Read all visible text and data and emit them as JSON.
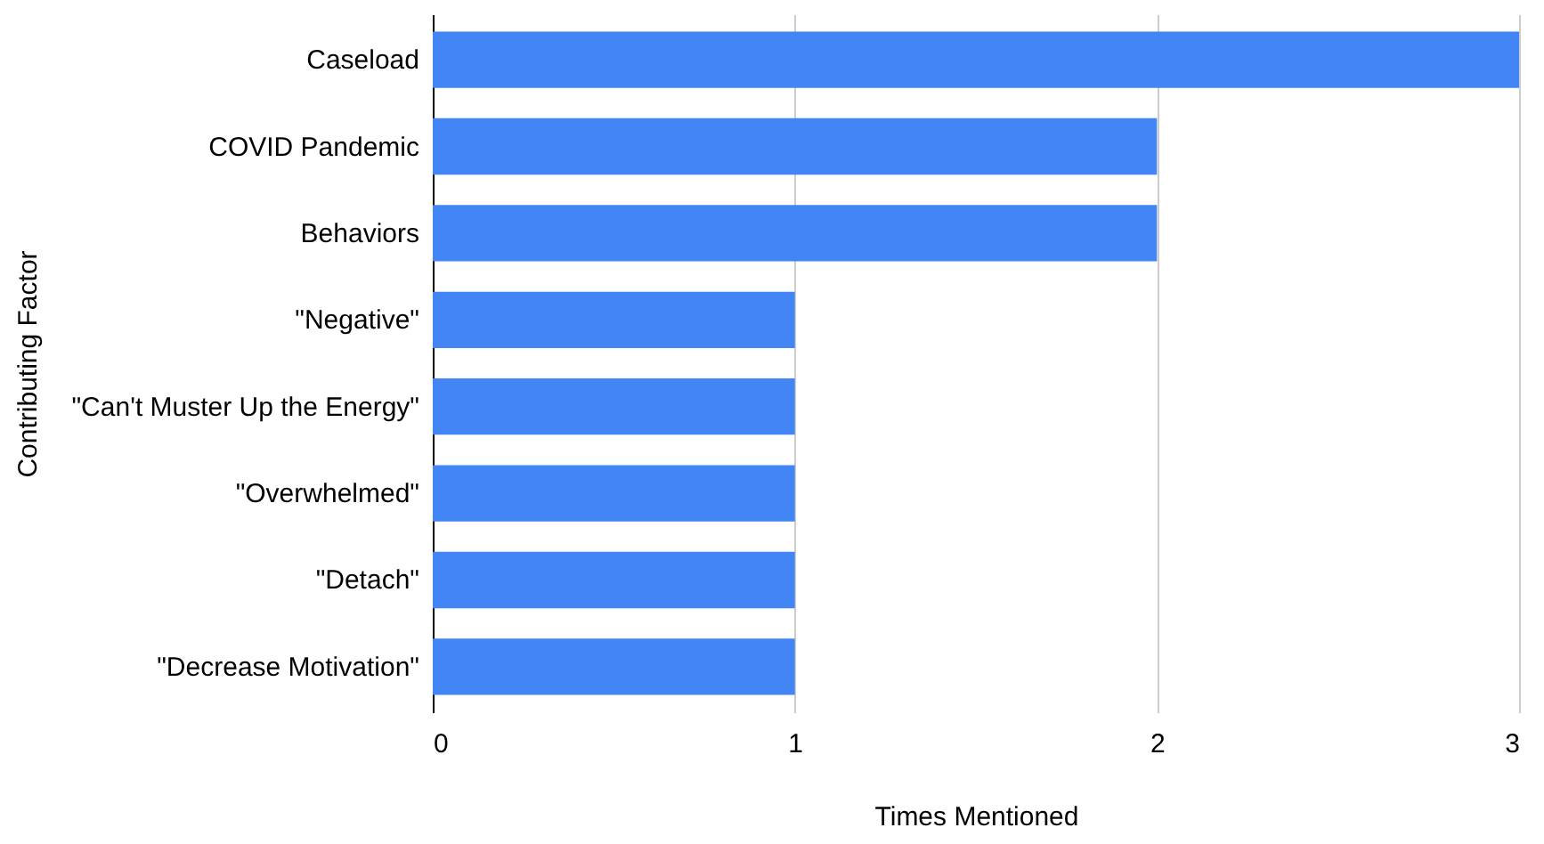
{
  "chart_data": {
    "type": "bar",
    "orientation": "horizontal",
    "xlabel": "Times Mentioned",
    "ylabel": "Contributing Factor",
    "categories": [
      "Caseload",
      "COVID Pandemic",
      "Behaviors",
      "\"Negative\"",
      "\"Can't Muster Up the Energy\"",
      "\"Overwhelmed\"",
      "\"Detach\"",
      "\"Decrease Motivation\""
    ],
    "values": [
      3,
      2,
      2,
      1,
      1,
      1,
      1,
      1
    ],
    "color": "#4285f4",
    "xlim": [
      0,
      3
    ],
    "xticks": [
      0,
      1,
      2,
      3
    ],
    "grid": "x"
  }
}
